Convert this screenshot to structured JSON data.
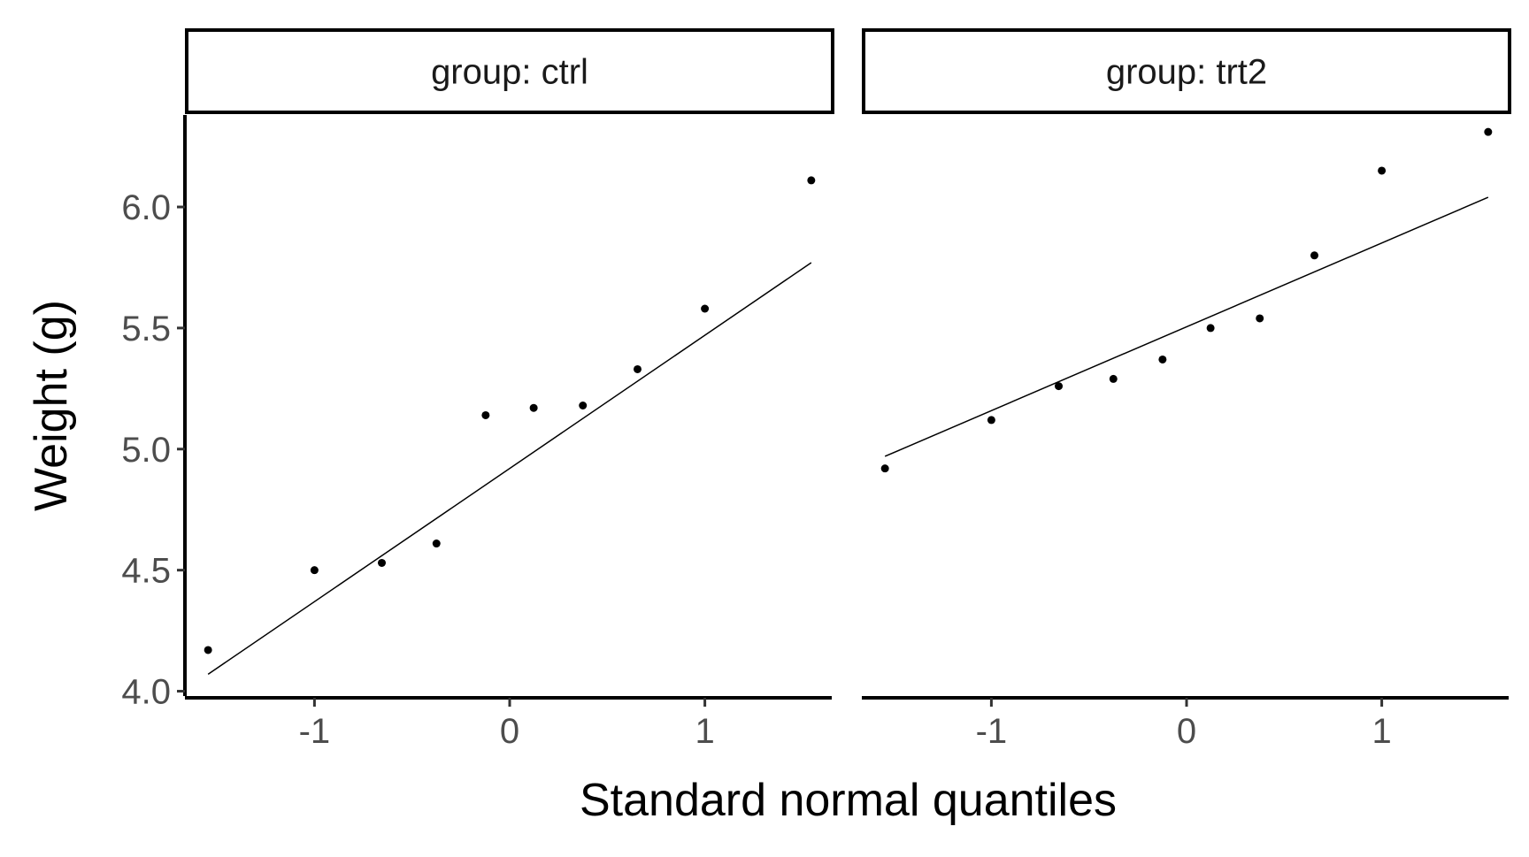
{
  "chart_data": {
    "type": "scatter",
    "subtype": "qq-plot facets",
    "xlabel": "Standard normal quantiles",
    "ylabel": "Weight (g)",
    "xlim": [
      -1.65,
      1.65
    ],
    "ylim": [
      3.98,
      6.38
    ],
    "x_ticks": [
      -1,
      0,
      1
    ],
    "x_tick_labels": [
      "-1",
      "0",
      "1"
    ],
    "y_ticks": [
      4.0,
      4.5,
      5.0,
      5.5,
      6.0
    ],
    "y_tick_labels": [
      "4.0",
      "4.5",
      "5.0",
      "5.5",
      "6.0"
    ],
    "grid": false,
    "panels": [
      {
        "strip_label": "group: ctrl",
        "points": [
          {
            "x": -1.545,
            "y": 4.17
          },
          {
            "x": -1.0,
            "y": 4.5
          },
          {
            "x": -0.655,
            "y": 4.53
          },
          {
            "x": -0.375,
            "y": 4.61
          },
          {
            "x": -0.123,
            "y": 5.14
          },
          {
            "x": 0.123,
            "y": 5.17
          },
          {
            "x": 0.375,
            "y": 5.18
          },
          {
            "x": 0.655,
            "y": 5.33
          },
          {
            "x": 1.0,
            "y": 5.58
          },
          {
            "x": 1.545,
            "y": 6.11
          }
        ],
        "line": {
          "x1": -1.545,
          "y1": 4.07,
          "x2": 1.545,
          "y2": 5.77
        }
      },
      {
        "strip_label": "group: trt2",
        "points": [
          {
            "x": -1.545,
            "y": 4.92
          },
          {
            "x": -1.0,
            "y": 5.12
          },
          {
            "x": -0.655,
            "y": 5.26
          },
          {
            "x": -0.375,
            "y": 5.29
          },
          {
            "x": -0.123,
            "y": 5.37
          },
          {
            "x": 0.123,
            "y": 5.5
          },
          {
            "x": 0.375,
            "y": 5.54
          },
          {
            "x": 0.655,
            "y": 5.8
          },
          {
            "x": 1.0,
            "y": 6.15
          },
          {
            "x": 1.545,
            "y": 6.31
          }
        ],
        "line": {
          "x1": -1.545,
          "y1": 4.97,
          "x2": 1.545,
          "y2": 6.04
        }
      }
    ]
  }
}
